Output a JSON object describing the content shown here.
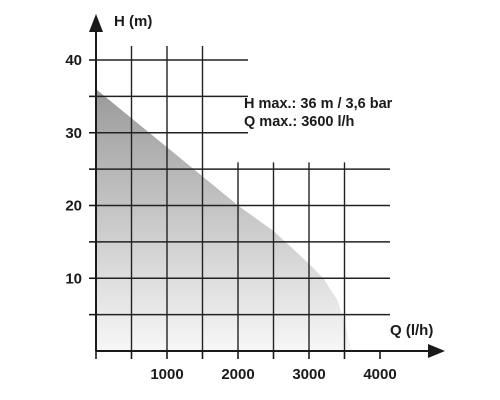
{
  "chart_data": {
    "type": "area",
    "title": "",
    "xlabel": "Q (l/h)",
    "ylabel": "H (m)",
    "xlim": [
      0,
      4000
    ],
    "ylim": [
      0,
      40
    ],
    "x_ticks": [
      1000,
      2000,
      3000,
      4000
    ],
    "y_ticks": [
      10,
      20,
      30,
      40
    ],
    "x_tick_labels": [
      "1000",
      "2000",
      "3000",
      "4000"
    ],
    "y_tick_labels": [
      "10",
      "20",
      "30",
      "40"
    ],
    "grid": true,
    "series": [
      {
        "x": [
          0,
          500,
          1000,
          1500,
          2000,
          2500,
          3000,
          3200,
          3400,
          3500,
          3600
        ],
        "values": [
          36,
          32,
          28,
          24,
          20,
          16.5,
          12,
          10,
          7,
          4,
          0
        ]
      }
    ],
    "annotations": [
      "H max.: 36 m / 3,6 bar",
      "Q max.: 3600 l/h"
    ],
    "colors": {
      "fill_top": "#9a9a9a",
      "fill_bottom": "#f7f7f7",
      "grid": "#222222",
      "axis": "#1a1a1a"
    }
  }
}
